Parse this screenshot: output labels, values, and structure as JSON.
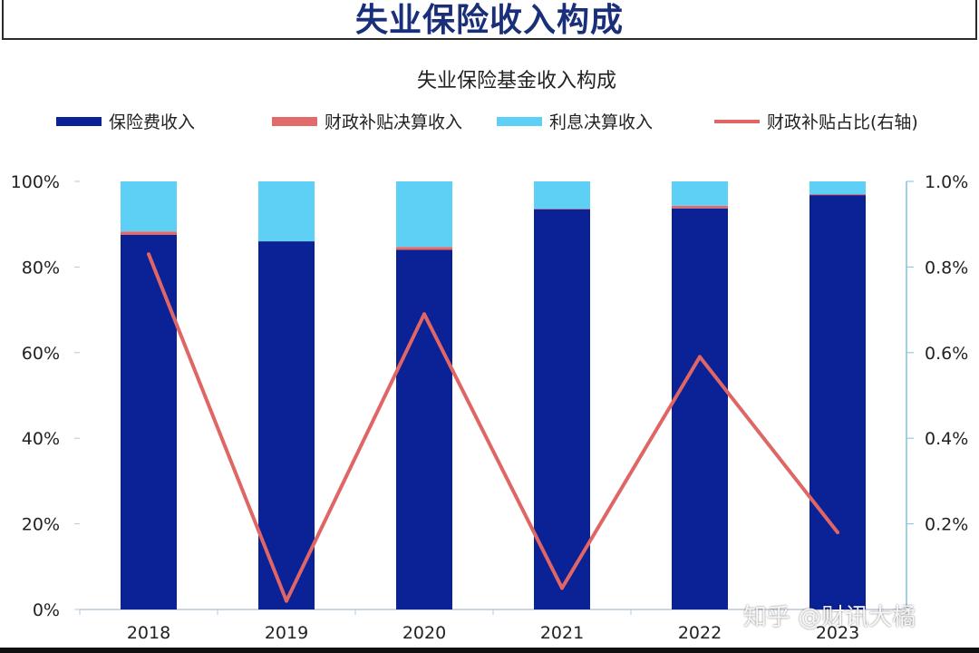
{
  "slide_title": "失业保险收入构成",
  "watermark": "知乎 @财讯大橘",
  "colors": {
    "premium": "#0b2196",
    "fiscal_subsidy": "#e36a6a",
    "interest": "#5fd0f5",
    "ratio_line": "#e06666",
    "right_axis": "#7ec4d8"
  },
  "chart_data": {
    "type": "bar",
    "stacked": true,
    "title": "失业保险基金收入构成",
    "categories": [
      "2018",
      "2019",
      "2020",
      "2021",
      "2022",
      "2023"
    ],
    "series": [
      {
        "name": "保险费收入",
        "type": "bar",
        "axis": "left",
        "values": [
          87.5,
          86.0,
          84.0,
          93.5,
          93.7,
          96.8
        ]
      },
      {
        "name": "财政补贴决算收入",
        "type": "bar",
        "axis": "left",
        "values": [
          0.8,
          0.0,
          0.7,
          0.1,
          0.6,
          0.2
        ]
      },
      {
        "name": "利息决算收入",
        "type": "bar",
        "axis": "left",
        "values": [
          11.7,
          14.0,
          15.3,
          6.4,
          5.7,
          3.0
        ]
      },
      {
        "name": "财政补贴占比(右轴)",
        "type": "line",
        "axis": "right",
        "values": [
          0.83,
          0.02,
          0.69,
          0.05,
          0.59,
          0.18
        ]
      }
    ],
    "y_left": {
      "min": 0,
      "max": 100,
      "ticks": [
        0,
        20,
        40,
        60,
        80,
        100
      ],
      "tick_labels": [
        "0%",
        "20%",
        "40%",
        "60%",
        "80%",
        "100%"
      ]
    },
    "y_right": {
      "min": 0,
      "max": 1.0,
      "ticks": [
        0.2,
        0.4,
        0.6,
        0.8,
        1.0
      ],
      "tick_labels": [
        "0.2%",
        "0.4%",
        "0.6%",
        "0.8%",
        "1.0%"
      ]
    },
    "legend_position": "top",
    "grid": false
  }
}
